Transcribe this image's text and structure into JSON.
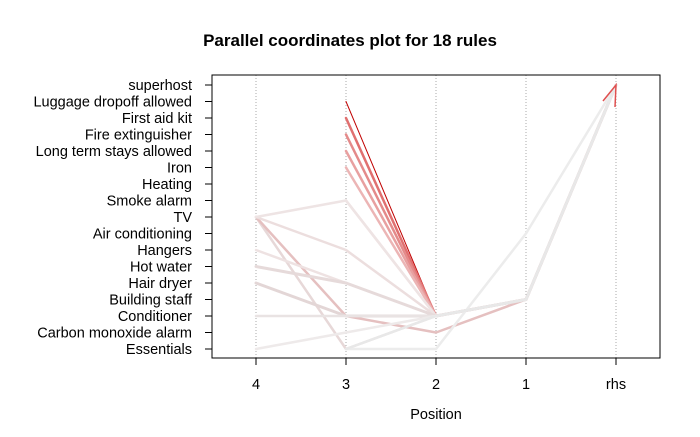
{
  "chart_data": {
    "type": "parallel_coordinates",
    "title": "Parallel coordinates plot for 18 rules",
    "xlabel": "Position",
    "axes": [
      "4",
      "3",
      "2",
      "1",
      "rhs"
    ],
    "items": [
      "superhost",
      "Luggage dropoff allowed",
      "First aid kit",
      "Fire extinguisher",
      "Long term stays allowed",
      "Iron",
      "Heating",
      "Smoke alarm",
      "TV",
      "Air conditioning",
      "Hangers",
      "Hot water",
      "Hair dryer",
      "Building staff",
      "Conditioner",
      "Carbon monoxide alarm",
      "Essentials"
    ],
    "grid": "vertical dotted lines at each position",
    "rules": [
      {
        "path": [
          null,
          "Luggage dropoff allowed",
          "Conditioner",
          "Building staff",
          "superhost"
        ],
        "color": "#c00000",
        "width": 1
      },
      {
        "path": [
          null,
          "First aid kit",
          "Conditioner",
          "Building staff",
          "superhost"
        ],
        "color": "#e07070",
        "width": 2.5
      },
      {
        "path": [
          null,
          "Fire extinguisher",
          "Conditioner",
          "Building staff",
          "superhost"
        ],
        "color": "#e48a8a",
        "width": 2.5
      },
      {
        "path": [
          null,
          "Long term stays allowed",
          "Conditioner",
          "Building staff",
          "superhost"
        ],
        "color": "#e8a0a0",
        "width": 2.5
      },
      {
        "path": [
          null,
          "Iron",
          "Conditioner",
          "Building staff",
          "superhost"
        ],
        "color": "#ecb5b5",
        "width": 2.5
      },
      {
        "path": [
          null,
          null,
          "Conditioner",
          "Building staff",
          "superhost"
        ],
        "color": "#ff0000",
        "width": 1.5
      },
      {
        "path": [
          null,
          "Smoke alarm",
          "Conditioner",
          "Building staff",
          "superhost"
        ],
        "color": "#eed5d5",
        "width": 2.5
      },
      {
        "path": [
          "TV",
          "Essentials",
          "Conditioner",
          "Building staff",
          "superhost"
        ],
        "color": "#e7d8d8",
        "width": 2.5
      },
      {
        "path": [
          "TV",
          "Conditioner",
          "Carbon monoxide alarm",
          "Building staff",
          "superhost"
        ],
        "color": "#e5c0c0",
        "width": 2.5
      },
      {
        "path": [
          "TV",
          "Hangers",
          "Conditioner",
          "Building staff",
          "superhost"
        ],
        "color": "#ecdede",
        "width": 2.5
      },
      {
        "path": [
          "TV",
          "Smoke alarm",
          "Conditioner",
          "Building staff",
          "superhost"
        ],
        "color": "#eee4e4",
        "width": 2.5
      },
      {
        "path": [
          "Hangers",
          "Hair dryer",
          "Conditioner",
          "Building staff",
          "superhost"
        ],
        "color": "#eee2e2",
        "width": 2.5
      },
      {
        "path": [
          "Hot water",
          "Hair dryer",
          "Conditioner",
          "Building staff",
          "superhost"
        ],
        "color": "#e6dada",
        "width": 3
      },
      {
        "path": [
          "Hair dryer",
          "Conditioner",
          "Conditioner",
          "Building staff",
          "superhost"
        ],
        "color": "#e3d6d6",
        "width": 3
      },
      {
        "path": [
          null,
          "Essentials",
          "Essentials",
          "Air conditioning",
          "superhost"
        ],
        "color": "#ececec",
        "width": 2.5
      },
      {
        "path": [
          "Conditioner",
          "Conditioner",
          "Conditioner",
          "Building staff",
          "superhost"
        ],
        "color": "#e9e3e3",
        "width": 2.5
      },
      {
        "path": [
          "Essentials",
          "Carbon monoxide alarm",
          "Conditioner",
          "Building staff",
          "superhost"
        ],
        "color": "#eeeaea",
        "width": 2.5
      },
      {
        "path": [
          null,
          "Essentials",
          "Conditioner",
          "Building staff",
          "superhost"
        ],
        "color": "#e8e8e8",
        "width": 2.5
      }
    ]
  }
}
